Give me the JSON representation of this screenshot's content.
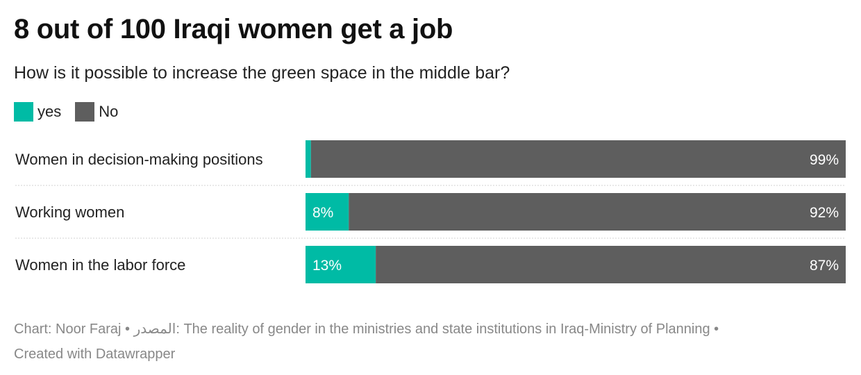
{
  "title": "8 out of 100 Iraqi women get a job",
  "subtitle": "How is it possible to increase the green space in the middle bar?",
  "colors": {
    "yes": "#00bba5",
    "no": "#5e5e5e",
    "label_on_bar": "#ffffff",
    "separator": "#d0d0d0"
  },
  "legend": [
    {
      "label": "yes",
      "color": "#00bba5"
    },
    {
      "label": "No",
      "color": "#5e5e5e"
    }
  ],
  "chart_data": {
    "type": "bar",
    "orientation": "horizontal",
    "stacked": true,
    "categories": [
      "Women in decision-making positions",
      "Working women",
      "Women in the labor force"
    ],
    "series": [
      {
        "name": "yes",
        "values": [
          1,
          8,
          13
        ],
        "labels": [
          "",
          "8%",
          "13%"
        ]
      },
      {
        "name": "No",
        "values": [
          99,
          92,
          87
        ],
        "labels": [
          "99%",
          "92%",
          "87%"
        ]
      }
    ],
    "xlim": [
      0,
      100
    ],
    "grid": false,
    "legend_position": "top-left"
  },
  "footer": {
    "line1_prefix": "Chart: Noor Faraj • ",
    "source_label": "المصدر",
    "line1_suffix": ": The reality of gender in the ministries and state institutions in Iraq-Ministry of Planning •",
    "line2": "Created with Datawrapper"
  }
}
